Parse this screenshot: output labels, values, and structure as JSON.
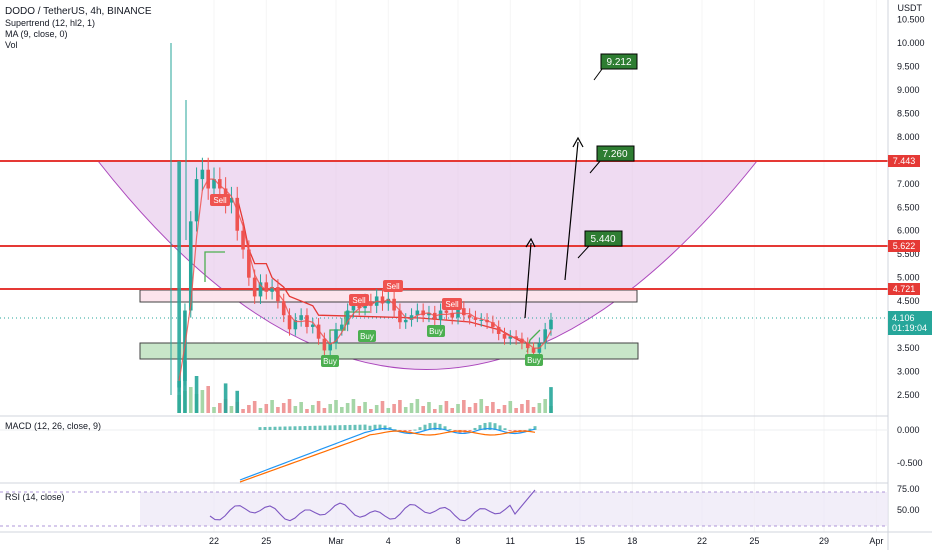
{
  "legend": {
    "title": "DODO / TetherUS, 4h, BINANCE",
    "indicators": [
      "Supertrend (12, hl2, 1)",
      "MA (9, close, 0)",
      "Vol"
    ]
  },
  "price_axis": {
    "currency": "USDT",
    "ticks": [
      "10.500",
      "10.000",
      "9.500",
      "9.000",
      "8.500",
      "8.000",
      "7.500",
      "7.000",
      "6.500",
      "6.000",
      "5.500",
      "5.000",
      "4.500",
      "4.000",
      "3.500",
      "3.000",
      "2.500"
    ],
    "levels": [
      "7.443",
      "5.622",
      "4.721"
    ],
    "current_price": "4.106",
    "countdown": "01:19:04"
  },
  "time_axis": {
    "labels": [
      "22",
      "25",
      "Mar",
      "4",
      "8",
      "11",
      "15",
      "18",
      "22",
      "25",
      "29",
      "Apr"
    ]
  },
  "targets": [
    "9.212",
    "7.260",
    "5.440"
  ],
  "signals": {
    "sell": [
      "Sell",
      "Sell",
      "Sell",
      "Sell"
    ],
    "buy": [
      "Buy",
      "Buy",
      "Buy",
      "Buy"
    ]
  },
  "macd": {
    "label": "MACD (12, 26, close, 9)",
    "ticks": [
      "0.000",
      "-0.500"
    ]
  },
  "rsi": {
    "label": "RSI (14, close)",
    "ticks": [
      "75.00",
      "50.00"
    ]
  },
  "colors": {
    "up": "#26a69a",
    "down": "#ef5350",
    "level": "#e53935",
    "bowl_fill": "#e1bee7",
    "bowl_stroke": "#ab47bc",
    "target_bg": "#2e7d32",
    "sell_bg": "#ef5350",
    "buy_bg": "#4caf50",
    "macd_line": "#2196f3",
    "signal_line": "#ff6d00",
    "rsi_line": "#7e57c2"
  },
  "chart_data": {
    "type": "candlestick",
    "title": "DODO / TetherUS, 4h, BINANCE",
    "y_range": [
      2.3,
      10.5
    ],
    "horizontal_levels": [
      7.443,
      5.622,
      4.721
    ],
    "support_zone": [
      3.3,
      3.6
    ],
    "resistance_zone": [
      4.5,
      4.75
    ],
    "targets": [
      5.44,
      7.26,
      9.212
    ],
    "current_price": 4.106,
    "close_path": [
      {
        "x": "2021-02-20 00:00",
        "y": 2.8
      },
      {
        "x": "2021-02-20 08:00",
        "y": 4.3
      },
      {
        "x": "2021-02-20 16:00",
        "y": 6.2
      },
      {
        "x": "2021-02-21 00:00",
        "y": 7.1
      },
      {
        "x": "2021-02-21 08:00",
        "y": 7.3
      },
      {
        "x": "2021-02-21 16:00",
        "y": 6.9
      },
      {
        "x": "2021-02-22 00:00",
        "y": 7.1
      },
      {
        "x": "2021-02-22 08:00",
        "y": 6.9
      },
      {
        "x": "2021-02-22 16:00",
        "y": 6.6
      },
      {
        "x": "2021-02-23 00:00",
        "y": 6.7
      },
      {
        "x": "2021-02-23 08:00",
        "y": 6.0
      },
      {
        "x": "2021-02-23 16:00",
        "y": 5.6
      },
      {
        "x": "2021-02-24 00:00",
        "y": 5.0
      },
      {
        "x": "2021-02-24 08:00",
        "y": 4.6
      },
      {
        "x": "2021-02-24 16:00",
        "y": 4.9
      },
      {
        "x": "2021-02-25 00:00",
        "y": 4.7
      },
      {
        "x": "2021-02-25 08:00",
        "y": 4.8
      },
      {
        "x": "2021-02-25 16:00",
        "y": 4.5
      },
      {
        "x": "2021-02-26 00:00",
        "y": 4.2
      },
      {
        "x": "2021-02-26 08:00",
        "y": 3.9
      },
      {
        "x": "2021-02-26 16:00",
        "y": 4.1
      },
      {
        "x": "2021-02-27 00:00",
        "y": 4.2
      },
      {
        "x": "2021-02-27 08:00",
        "y": 3.95
      },
      {
        "x": "2021-02-27 16:00",
        "y": 4.0
      },
      {
        "x": "2021-02-28 00:00",
        "y": 3.7
      },
      {
        "x": "2021-02-28 08:00",
        "y": 3.45
      },
      {
        "x": "2021-02-28 16:00",
        "y": 3.6
      },
      {
        "x": "2021-03-01 00:00",
        "y": 3.9
      },
      {
        "x": "2021-03-01 08:00",
        "y": 4.0
      },
      {
        "x": "2021-03-01 16:00",
        "y": 4.3
      },
      {
        "x": "2021-03-02 00:00",
        "y": 4.4
      },
      {
        "x": "2021-03-02 08:00",
        "y": 4.35
      },
      {
        "x": "2021-03-02 16:00",
        "y": 4.5
      },
      {
        "x": "2021-03-03 00:00",
        "y": 4.4
      },
      {
        "x": "2021-03-03 08:00",
        "y": 4.6
      },
      {
        "x": "2021-03-03 16:00",
        "y": 4.45
      },
      {
        "x": "2021-03-04 00:00",
        "y": 4.55
      },
      {
        "x": "2021-03-04 08:00",
        "y": 4.3
      },
      {
        "x": "2021-03-04 16:00",
        "y": 4.05
      },
      {
        "x": "2021-03-05 00:00",
        "y": 4.1
      },
      {
        "x": "2021-03-05 08:00",
        "y": 4.2
      },
      {
        "x": "2021-03-05 16:00",
        "y": 4.3
      },
      {
        "x": "2021-03-06 00:00",
        "y": 4.2
      },
      {
        "x": "2021-03-06 08:00",
        "y": 4.25
      },
      {
        "x": "2021-03-06 16:00",
        "y": 4.1
      },
      {
        "x": "2021-03-07 00:00",
        "y": 4.3
      },
      {
        "x": "2021-03-07 08:00",
        "y": 4.25
      },
      {
        "x": "2021-03-07 16:00",
        "y": 4.15
      },
      {
        "x": "2021-03-08 00:00",
        "y": 4.35
      },
      {
        "x": "2021-03-08 08:00",
        "y": 4.2
      },
      {
        "x": "2021-03-08 16:00",
        "y": 4.15
      },
      {
        "x": "2021-03-09 00:00",
        "y": 4.1
      },
      {
        "x": "2021-03-09 08:00",
        "y": 4.1
      },
      {
        "x": "2021-03-09 16:00",
        "y": 4.05
      },
      {
        "x": "2021-03-10 00:00",
        "y": 3.95
      },
      {
        "x": "2021-03-10 08:00",
        "y": 3.8
      },
      {
        "x": "2021-03-10 16:00",
        "y": 3.7
      },
      {
        "x": "2021-03-11 00:00",
        "y": 3.75
      },
      {
        "x": "2021-03-11 08:00",
        "y": 3.7
      },
      {
        "x": "2021-03-11 16:00",
        "y": 3.6
      },
      {
        "x": "2021-03-12 00:00",
        "y": 3.5
      },
      {
        "x": "2021-03-12 08:00",
        "y": 3.4
      },
      {
        "x": "2021-03-12 16:00",
        "y": 3.6
      },
      {
        "x": "2021-03-13 00:00",
        "y": 3.9
      },
      {
        "x": "2021-03-13 08:00",
        "y": 4.106
      }
    ],
    "supertrend_resistance_path": [
      {
        "x": "2021-02-23 08:00",
        "y": 6.7
      },
      {
        "x": "2021-02-23 16:00",
        "y": 6.2
      },
      {
        "x": "2021-02-24 00:00",
        "y": 5.6
      },
      {
        "x": "2021-02-24 08:00",
        "y": 5.3
      },
      {
        "x": "2021-02-25 00:00",
        "y": 5.3
      },
      {
        "x": "2021-02-25 08:00",
        "y": 5.0
      },
      {
        "x": "2021-02-26 00:00",
        "y": 4.8
      },
      {
        "x": "2021-02-26 08:00",
        "y": 4.6
      },
      {
        "x": "2021-02-27 16:00",
        "y": 4.4
      },
      {
        "x": "2021-02-28 00:00",
        "y": 4.2
      }
    ],
    "supertrend_support_path": [
      {
        "x": "2021-02-21 00:00",
        "y": 5.4
      },
      {
        "x": "2021-02-22 00:00",
        "y": 5.4
      }
    ],
    "volume_spikes": [
      {
        "x": "2021-02-20 00:00",
        "h": 0.68
      },
      {
        "x": "2021-02-20 08:00",
        "h": 0.14
      },
      {
        "x": "2021-02-21 00:00",
        "h": 0.1
      },
      {
        "x": "2021-02-22 16:00",
        "h": 0.08
      },
      {
        "x": "2021-02-23 08:00",
        "h": 0.06
      },
      {
        "x": "2021-03-13 08:00",
        "h": 0.07
      }
    ]
  }
}
